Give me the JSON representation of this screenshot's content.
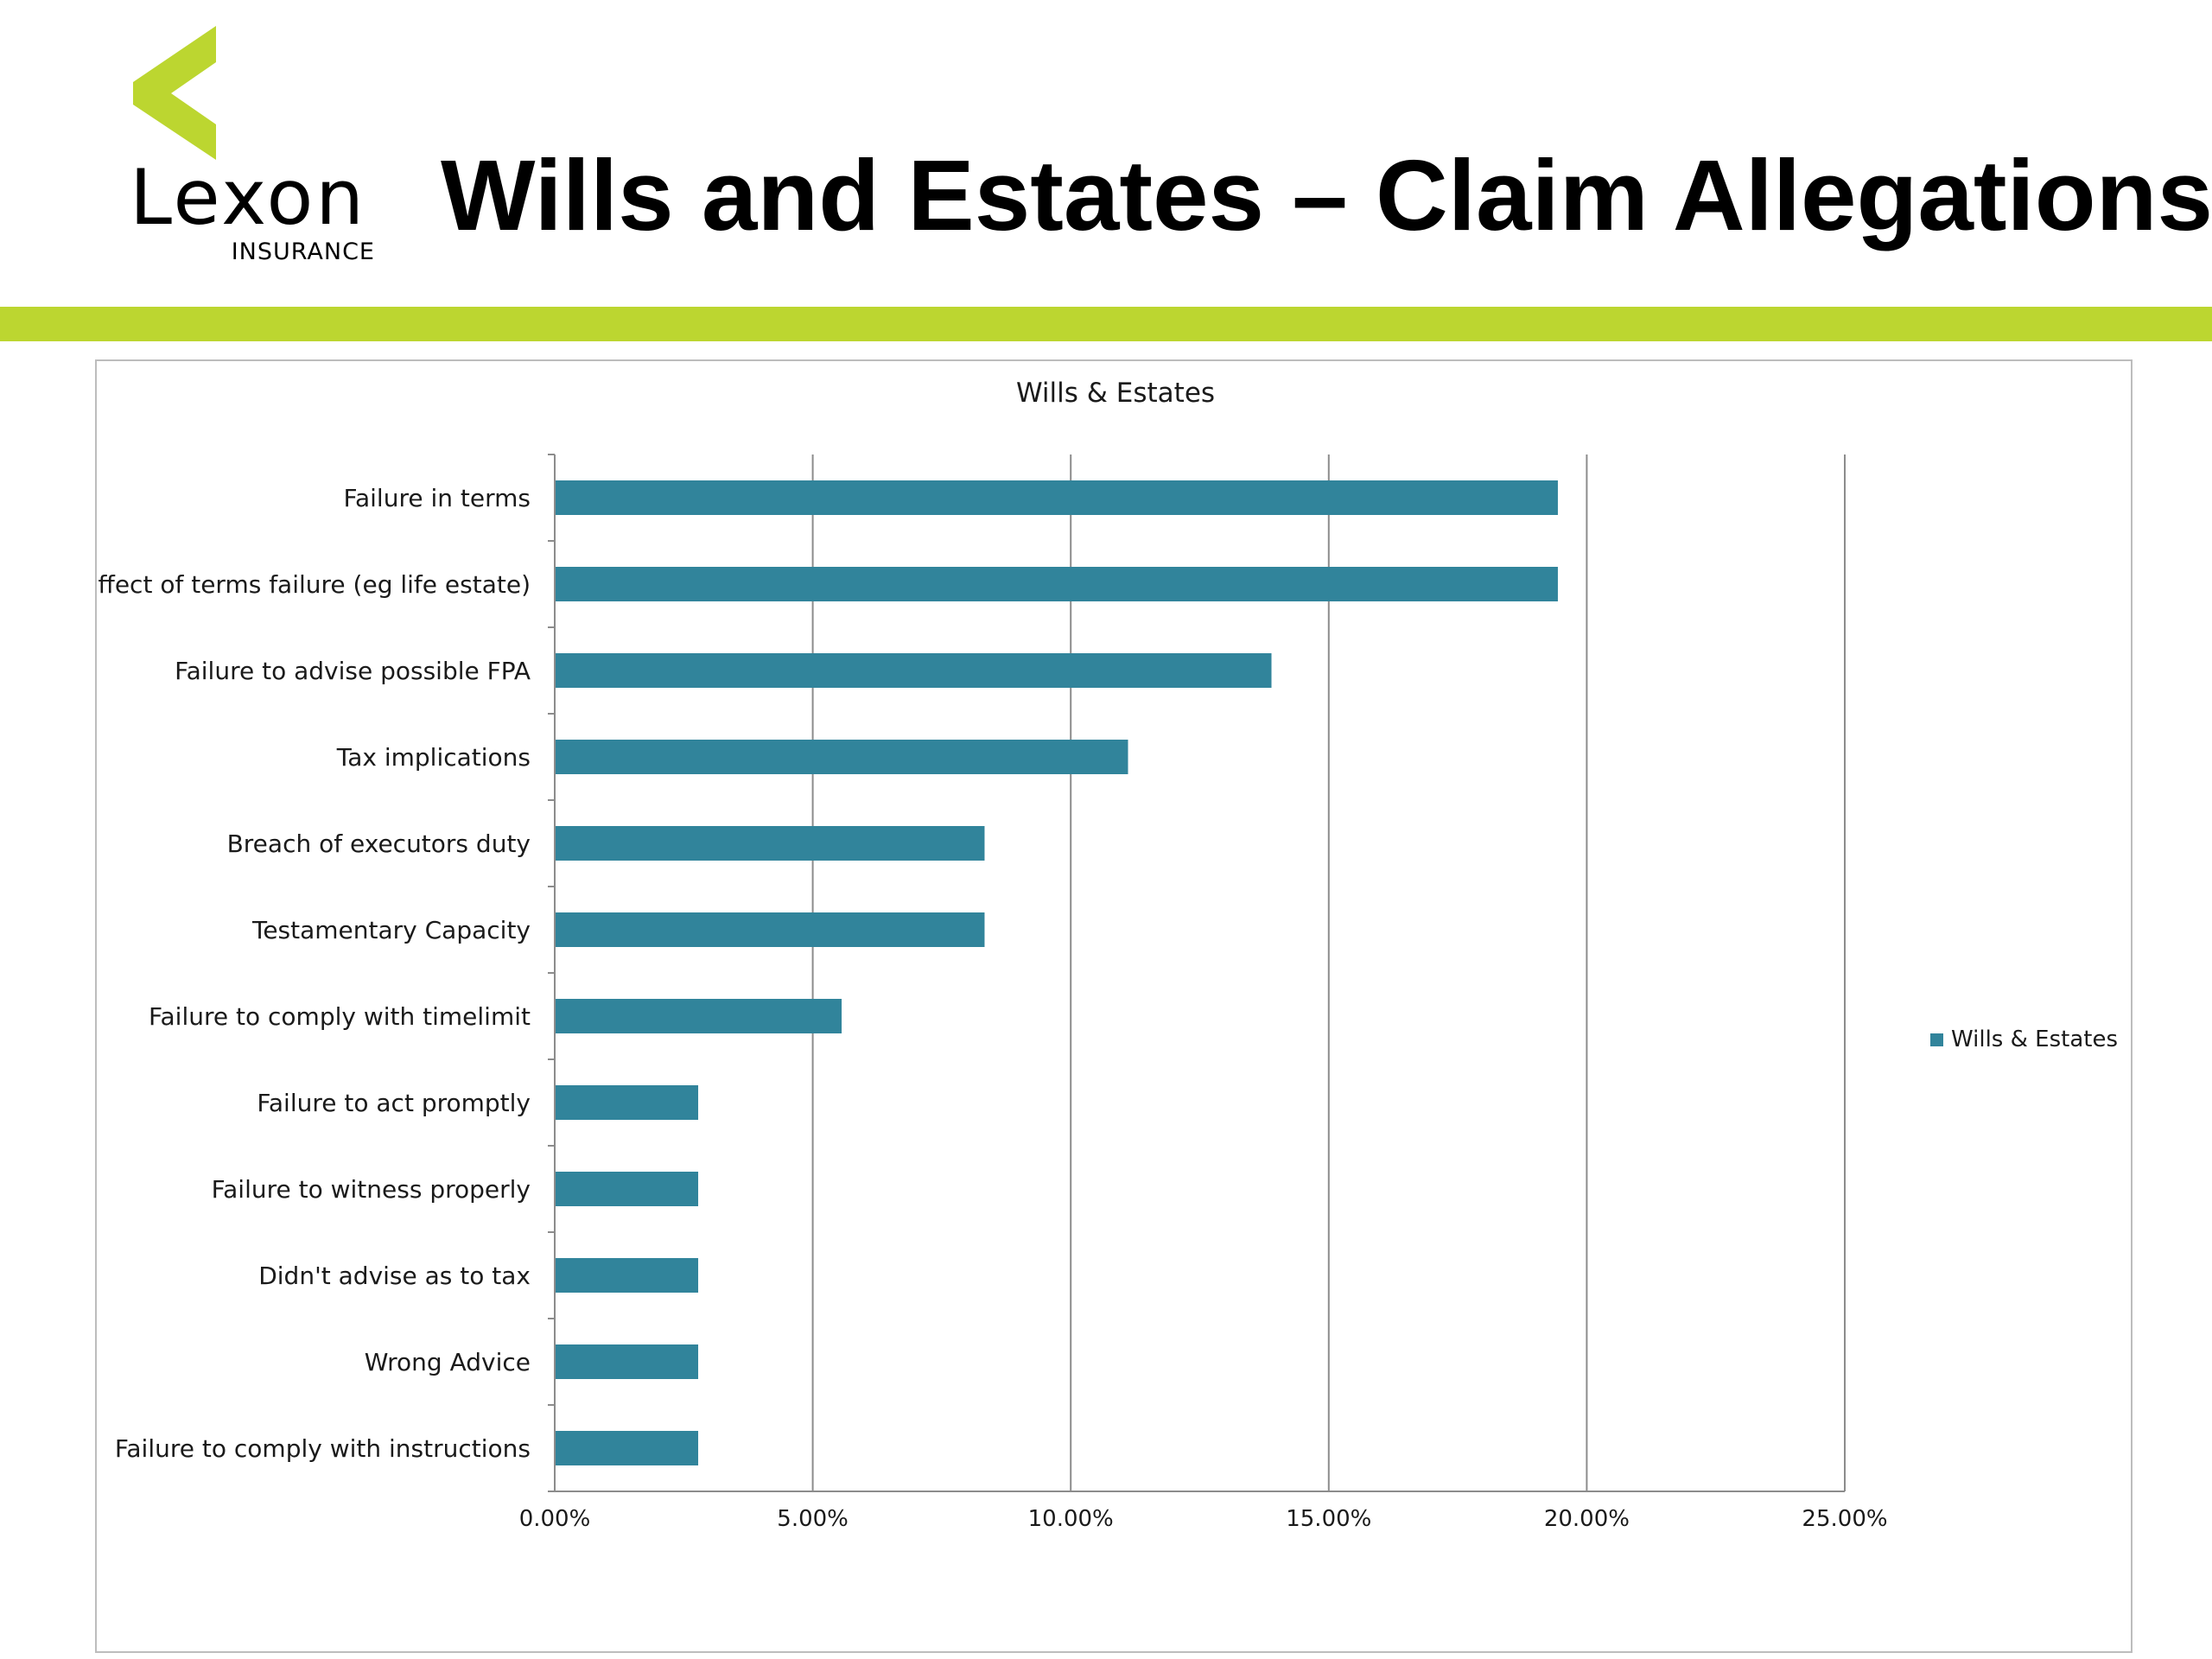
{
  "header": {
    "title": "Wills and Estates – Claim Allegations",
    "logo": {
      "word": "Lexon",
      "subtitle": "INSURANCE",
      "chevron_color": "#bcd630"
    },
    "accent_color": "#bcd630"
  },
  "chart_data": {
    "type": "bar",
    "orientation": "horizontal",
    "title": "Wills & Estates",
    "categories": [
      "Failure in terms",
      "Effect of terms failure (eg life estate)",
      "Failure to advise possible FPA",
      "Tax implications",
      "Breach of executors duty",
      "Testamentary Capacity",
      "Failure to comply with timelimit",
      "Failure to act promptly",
      "Failure to witness properly",
      "Didn't advise as to tax",
      "Wrong Advice",
      "Failure to comply with instructions"
    ],
    "series": [
      {
        "name": "Wills & Estates",
        "color": "#31849b",
        "values": [
          19.44,
          19.44,
          13.89,
          11.11,
          8.33,
          8.33,
          5.56,
          2.78,
          2.78,
          2.78,
          2.78,
          2.78
        ]
      }
    ],
    "value_unit": "%",
    "xlim": [
      0,
      25
    ],
    "xticks": [
      "0.00%",
      "5.00%",
      "10.00%",
      "15.00%",
      "20.00%",
      "25.00%"
    ],
    "grid": true,
    "legend_position": "right"
  }
}
